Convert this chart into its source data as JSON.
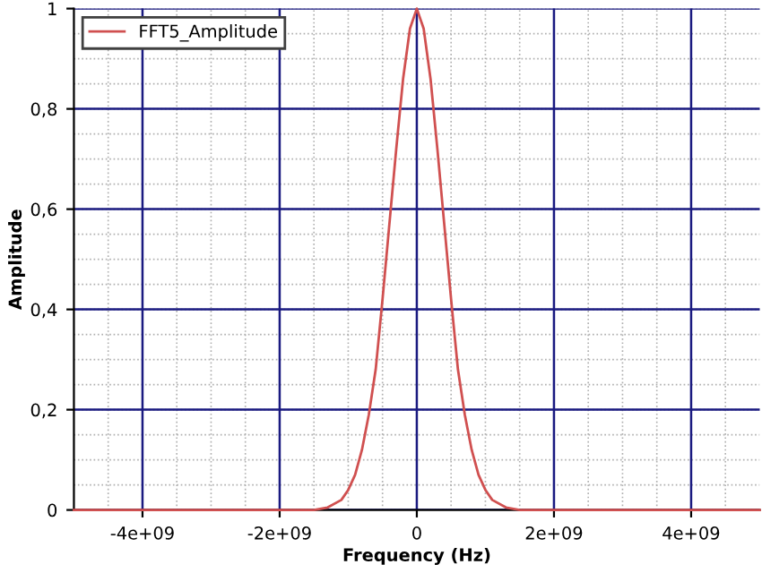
{
  "chart_data": {
    "type": "line",
    "xlabel": "Frequency (Hz)",
    "ylabel": "Amplitude",
    "x": [
      -5000000000,
      -2000000000,
      -1500000000,
      -1300000000,
      -1100000000,
      -1000000000,
      -900000000,
      -800000000,
      -700000000,
      -600000000,
      -500000000,
      -400000000,
      -300000000,
      -200000000,
      -100000000,
      0,
      100000000,
      200000000,
      300000000,
      400000000,
      500000000,
      600000000,
      700000000,
      800000000,
      900000000,
      1000000000,
      1100000000,
      1300000000,
      1500000000,
      2000000000,
      5000000000
    ],
    "series": [
      {
        "name": "FFT5_Amplitude",
        "color": "#d05050",
        "values": [
          0,
          0,
          0,
          0.005,
          0.02,
          0.04,
          0.07,
          0.12,
          0.19,
          0.28,
          0.42,
          0.57,
          0.72,
          0.86,
          0.96,
          1,
          0.96,
          0.86,
          0.72,
          0.57,
          0.42,
          0.28,
          0.19,
          0.12,
          0.07,
          0.04,
          0.02,
          0.005,
          0,
          0,
          0
        ]
      }
    ],
    "xlim": [
      -5000000000,
      5000000000
    ],
    "ylim": [
      0,
      1
    ],
    "xticks": [
      {
        "value": -4000000000,
        "label": "-4e+09"
      },
      {
        "value": -2000000000,
        "label": "-2e+09"
      },
      0,
      {
        "value": 2000000000,
        "label": "2e+09"
      },
      {
        "value": 4000000000,
        "label": "4e+09"
      }
    ],
    "yticks": [
      0,
      {
        "value": 0.2,
        "label": "0,2"
      },
      {
        "value": 0.4,
        "label": "0,4"
      },
      {
        "value": 0.6,
        "label": "0,6"
      },
      {
        "value": 0.8,
        "label": "0,8"
      },
      1
    ],
    "grid": true,
    "legend": "top left",
    "marker": "none",
    "line_style": "solid"
  }
}
